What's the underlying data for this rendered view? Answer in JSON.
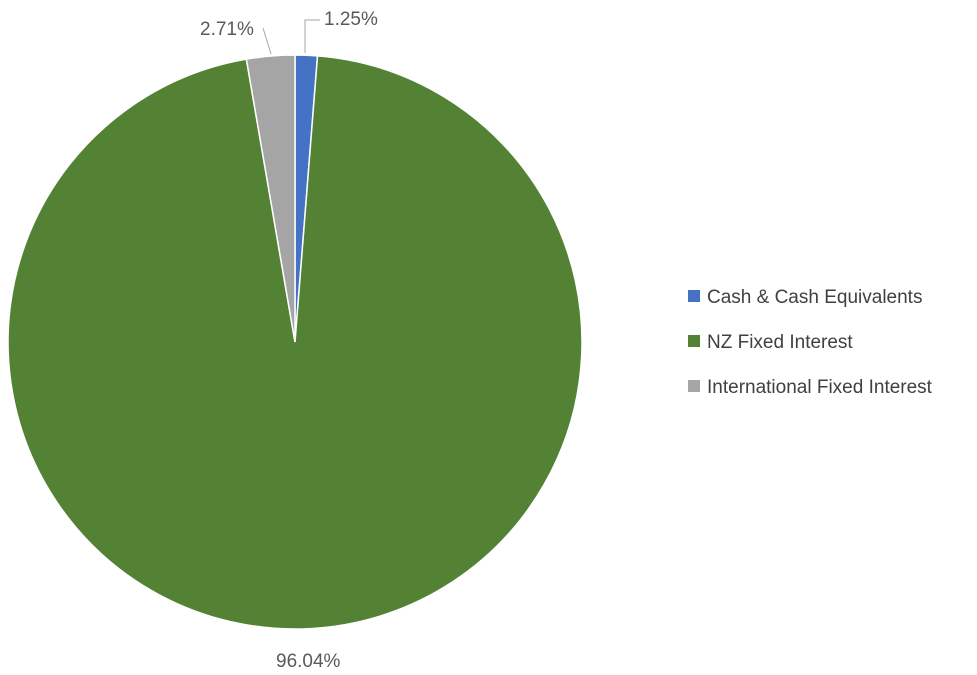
{
  "chart_data": {
    "type": "pie",
    "title": "",
    "categories": [
      "Cash & Cash Equivalents",
      "NZ Fixed Interest",
      "International Fixed Interest"
    ],
    "values": [
      1.25,
      96.04,
      2.71
    ],
    "value_labels": [
      "1.25%",
      "96.04%",
      "2.71%"
    ],
    "colors": [
      "#4472C4",
      "#548235",
      "#A5A5A5"
    ],
    "legend": {
      "position": "right"
    },
    "start_angle_deg": 0,
    "direction": "clockwise"
  }
}
